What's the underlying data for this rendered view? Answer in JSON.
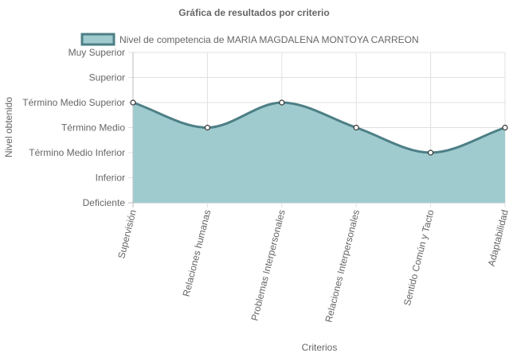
{
  "chart_data": {
    "type": "area",
    "title": "Gráfica de resultados por criterio",
    "xlabel": "Criterios",
    "ylabel": "Nivel obtenido",
    "categories": [
      "Supervisión",
      "Relaciones humanas",
      "Problemas Interpersonales",
      "Relaciones Interpersonales",
      "Sentido Común y Tacto",
      "Adaptabilidad"
    ],
    "y_levels": [
      "Deficiente",
      "Inferior",
      "Término Medio Inferior",
      "Término Medio",
      "Término Medio Superior",
      "Superior",
      "Muy Superior"
    ],
    "ylim": [
      0,
      6
    ],
    "legend_position": "top",
    "grid": true,
    "curve": "smooth",
    "series": [
      {
        "name": "Nivel de competencia de MARIA MAGDALENA MONTOYA CARREON",
        "values": [
          4,
          3,
          4,
          3,
          2,
          3
        ],
        "fill_color": "#9fcbcf",
        "line_color": "#4d7f86"
      }
    ]
  }
}
